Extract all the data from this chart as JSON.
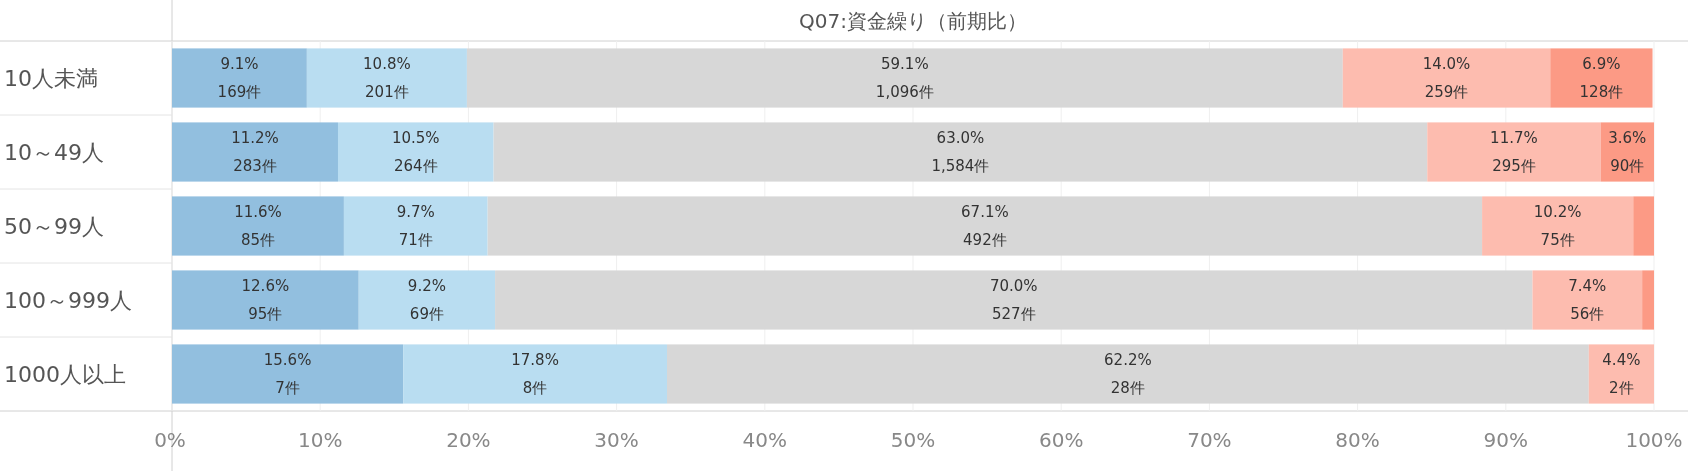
{
  "chart_data": {
    "type": "bar",
    "orientation": "horizontal",
    "stacked": true,
    "title": "Q07:資金繰り（前期比）",
    "categories": [
      "10人未満",
      "10～49人",
      "50～99人",
      "100～999人",
      "1000人以上"
    ],
    "series": [
      {
        "color": "#92bfdf",
        "values": [
          9.1,
          11.2,
          11.6,
          12.6,
          15.6
        ],
        "value_labels": [
          "9.1%\n169件",
          "11.2%\n283件",
          "11.6%\n85件",
          "12.6%\n95件",
          "15.6%\n7件"
        ]
      },
      {
        "color": "#b9ddf1",
        "values": [
          10.8,
          10.5,
          9.7,
          9.2,
          17.8
        ],
        "value_labels": [
          "10.8%\n201件",
          "10.5%\n264件",
          "9.7%\n71件",
          "9.2%\n69件",
          "17.8%\n8件"
        ]
      },
      {
        "color": "#d7d7d7",
        "values": [
          59.1,
          63.0,
          67.1,
          70.0,
          62.2
        ],
        "value_labels": [
          "59.1%\n1,096件",
          "63.0%\n1,584件",
          "67.1%\n492件",
          "70.0%\n527件",
          "62.2%\n28件"
        ]
      },
      {
        "color": "#fdbcaf",
        "values": [
          14.0,
          11.7,
          10.2,
          7.4,
          4.4
        ],
        "value_labels": [
          "14.0%\n259件",
          "11.7%\n295件",
          "10.2%\n75件",
          "7.4%\n56件",
          "4.4%\n2件"
        ]
      },
      {
        "color": "#fc9a85",
        "values": [
          6.9,
          3.6,
          1.4,
          0.8,
          null
        ],
        "value_labels": [
          "6.9%\n128件",
          "3.6%\n90件",
          null,
          null,
          null
        ]
      }
    ],
    "xlim": [
      0,
      100
    ],
    "xticks": [
      {
        "value": 0,
        "label": "0%"
      },
      {
        "value": 10,
        "label": "10%"
      },
      {
        "value": 20,
        "label": "20%"
      },
      {
        "value": 30,
        "label": "30%"
      },
      {
        "value": 40,
        "label": "40%"
      },
      {
        "value": 50,
        "label": "50%"
      },
      {
        "value": 60,
        "label": "60%"
      },
      {
        "value": 70,
        "label": "70%"
      },
      {
        "value": 80,
        "label": "80%"
      },
      {
        "value": 90,
        "label": "90%"
      },
      {
        "value": 100,
        "label": "100%"
      }
    ],
    "grid": "x"
  }
}
